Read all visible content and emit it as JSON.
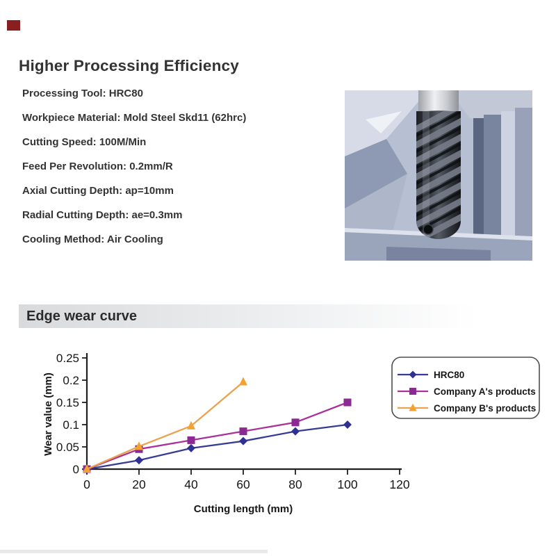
{
  "page": {
    "background": "#ffffff"
  },
  "accent_mark": {
    "color": "#8a1f1f"
  },
  "header": {
    "title": "Higher Processing Efficiency"
  },
  "specs": [
    "Processing Tool: HRC80",
    "Workpiece Material: Mold Steel Skd11 (62hrc)",
    "Cutting Speed: 100M/Min",
    "Feed Per Revolution: 0.2mm/R",
    "Axial Cutting Depth: ap=10mm",
    "Radial Cutting Depth: ae=0.3mm",
    "Cooling Method: Air Cooling"
  ],
  "tool_image": {
    "description": "end-mill-cutter-photo"
  },
  "section_banner": {
    "title": "Edge wear curve"
  },
  "chart_data": {
    "type": "line",
    "title": "",
    "xlabel": "Cutting length (mm)",
    "ylabel": "Wear value (mm)",
    "xlim": [
      0,
      120
    ],
    "ylim": [
      0,
      0.25
    ],
    "xticks": [
      0,
      20,
      40,
      60,
      80,
      100,
      120
    ],
    "ytick_labels": [
      "0",
      "0.05",
      "0.1",
      "0.15",
      "0.2",
      "0.25"
    ],
    "ytick_values": [
      0,
      0.05,
      0.1,
      0.15,
      0.2,
      0.25
    ],
    "grid": false,
    "legend_position": "upper right",
    "axis_color": "#1f1f1f",
    "x": [
      0,
      20,
      40,
      60,
      80,
      100
    ],
    "series": [
      {
        "name": "HRC80",
        "marker": "diamond",
        "line_color": "#363b93",
        "marker_color": "#2e3192",
        "values": [
          0,
          0.02,
          0.047,
          0.063,
          0.085,
          0.1
        ]
      },
      {
        "name": "Company A's products",
        "marker": "square",
        "line_color": "#ab3097",
        "marker_color": "#8a2a92",
        "values": [
          0,
          0.045,
          0.065,
          0.085,
          0.105,
          0.15
        ]
      },
      {
        "name": "Company B's products",
        "marker": "triangle",
        "line_color": "#e9a34f",
        "marker_color": "#f2a231",
        "values": [
          0,
          0.051,
          0.097,
          0.196
        ]
      }
    ]
  }
}
